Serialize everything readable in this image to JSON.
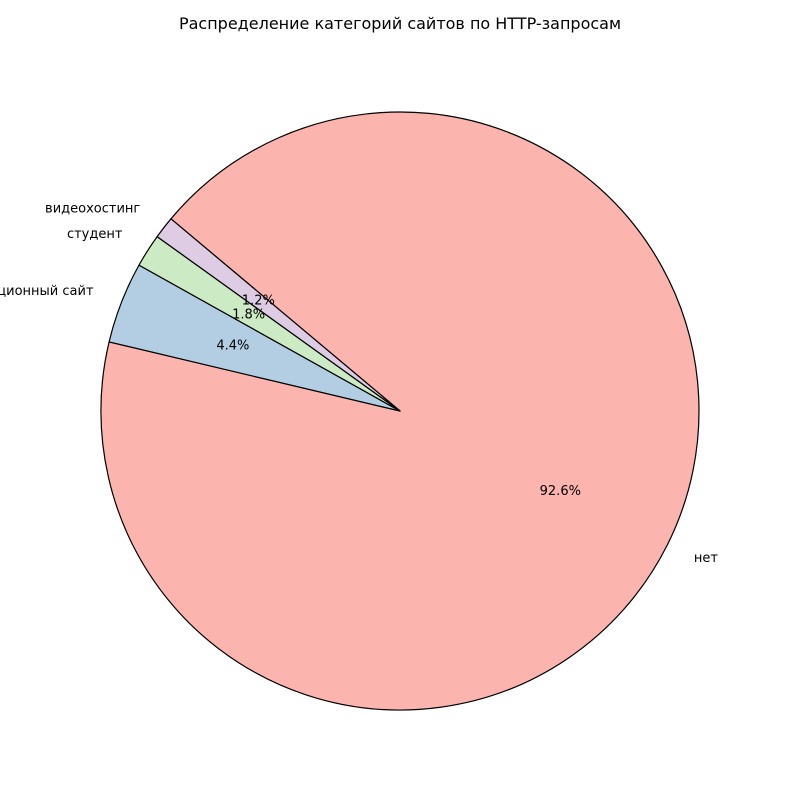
{
  "chart_data": {
    "type": "pie",
    "title": "Распределение категорий сайтов по HTTP-запросам",
    "slices": [
      {
        "label": "нет",
        "value": 92.6,
        "pct_label": "92.6%",
        "color": "#fbb4ae"
      },
      {
        "label": "информационный сайт",
        "value": 4.4,
        "pct_label": "4.4%",
        "color": "#b3cde3"
      },
      {
        "label": "студент",
        "value": 1.8,
        "pct_label": "1.8%",
        "color": "#ccebc5"
      },
      {
        "label": "видеохостинг",
        "value": 1.2,
        "pct_label": "1.2%",
        "color": "#decbe4"
      }
    ],
    "start_angle_deg": 140,
    "direction": "clockwise",
    "edge_color": "#000000"
  }
}
